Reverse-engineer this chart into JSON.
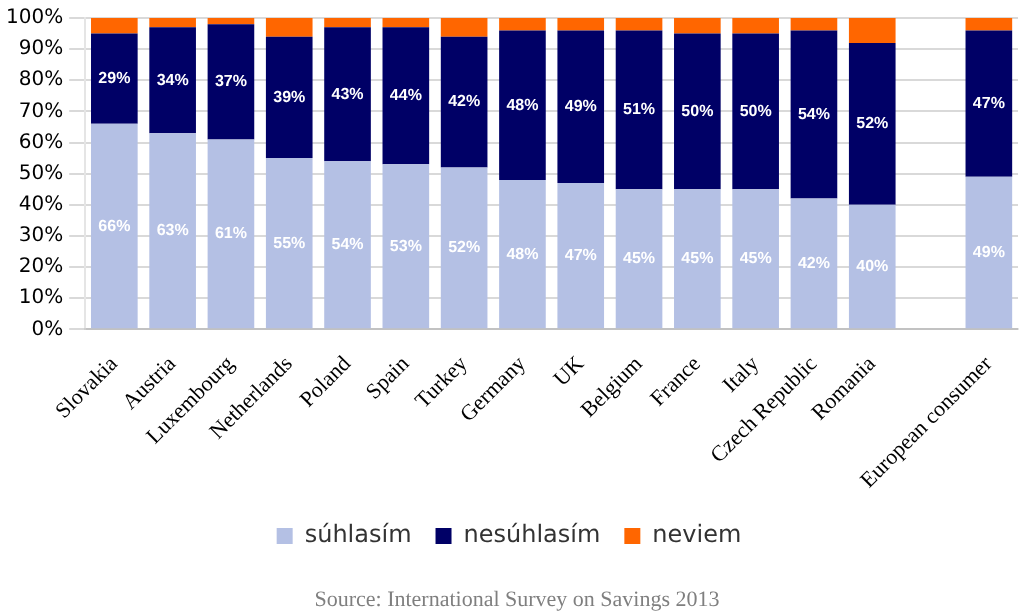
{
  "chart_data": {
    "type": "bar",
    "stacked": true,
    "categories": [
      "Slovakia",
      "Austria",
      "Luxembourg",
      "Netherlands",
      "Poland",
      "Spain",
      "Turkey",
      "Germany",
      "UK",
      "Belgium",
      "France",
      "Italy",
      "Czech Republic",
      "Romania",
      null,
      "European consumer"
    ],
    "series": [
      {
        "name": "súhlasím",
        "color": "#b4c0e4",
        "values": [
          66,
          63,
          61,
          55,
          54,
          53,
          52,
          48,
          47,
          45,
          45,
          45,
          42,
          40,
          null,
          49
        ],
        "value_labels": [
          "66%",
          "63%",
          "61%",
          "55%",
          "54%",
          "53%",
          "52%",
          "48%",
          "47%",
          "45%",
          "45%",
          "45%",
          "42%",
          "40%",
          null,
          "49%"
        ]
      },
      {
        "name": "nesúhlasím",
        "color": "#000066",
        "values": [
          29,
          34,
          37,
          39,
          43,
          44,
          42,
          48,
          49,
          51,
          50,
          50,
          54,
          52,
          null,
          47
        ],
        "value_labels": [
          "29%",
          "34%",
          "37%",
          "39%",
          "43%",
          "44%",
          "42%",
          "48%",
          "49%",
          "51%",
          "50%",
          "50%",
          "54%",
          "52%",
          null,
          "47%"
        ]
      },
      {
        "name": "neviem",
        "color": "#ff6600",
        "values": [
          5,
          3,
          2,
          6,
          3,
          3,
          6,
          4,
          4,
          4,
          5,
          5,
          4,
          8,
          null,
          4
        ]
      }
    ],
    "ylim": [
      0,
      100
    ],
    "yticks": [
      {
        "value": 0,
        "label": "0%"
      },
      {
        "value": 10,
        "label": "10%"
      },
      {
        "value": 20,
        "label": "20%"
      },
      {
        "value": 30,
        "label": "30%"
      },
      {
        "value": 40,
        "label": "40%"
      },
      {
        "value": 50,
        "label": "50%"
      },
      {
        "value": 60,
        "label": "60%"
      },
      {
        "value": 70,
        "label": "70%"
      },
      {
        "value": 80,
        "label": "80%"
      },
      {
        "value": 90,
        "label": "90%"
      },
      {
        "value": 100,
        "label": "100%"
      }
    ],
    "grid": "y",
    "legend": "bottom",
    "annotations": [
      "Source: International Survey on Savings 2013"
    ]
  }
}
